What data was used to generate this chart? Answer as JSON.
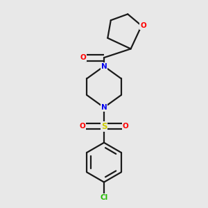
{
  "background_color": "#e8e8e8",
  "bond_color": "#1a1a1a",
  "atom_colors": {
    "O": "#ff0000",
    "N": "#0000ee",
    "S": "#cccc00",
    "Cl": "#22bb00",
    "C": "#1a1a1a"
  },
  "bond_width": 1.6,
  "figsize": [
    3.0,
    3.0
  ],
  "dpi": 100
}
